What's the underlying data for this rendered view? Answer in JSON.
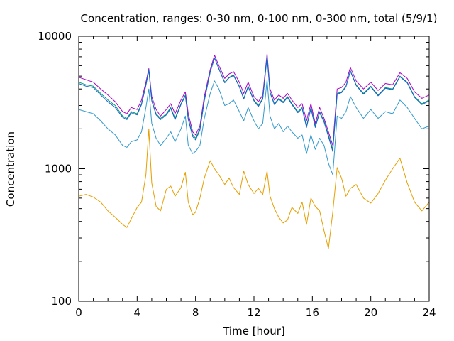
{
  "chart_data": {
    "type": "line",
    "title": "Concentration, ranges: 0-30 nm, 0-100 nm, 0-300 nm, total (5/9/1)",
    "xlabel": "Time [hour]",
    "ylabel": "Concentration",
    "xlim": [
      0,
      24
    ],
    "ylim": [
      100,
      10000
    ],
    "yscale": "log",
    "grid": false,
    "legend": "none",
    "x_ticks": [
      "0",
      "4",
      "8",
      "12",
      "16",
      "20",
      "24"
    ],
    "x_tick_values": [
      0,
      4,
      8,
      12,
      16,
      20,
      24
    ],
    "y_ticks": [
      "100",
      "1000",
      "10000"
    ],
    "y_tick_values": [
      100,
      1000,
      10000
    ],
    "x": [
      0.0,
      0.5,
      1.0,
      1.5,
      2.0,
      2.5,
      3.0,
      3.3,
      3.6,
      4.0,
      4.3,
      4.6,
      4.8,
      5.0,
      5.3,
      5.6,
      6.0,
      6.3,
      6.6,
      7.0,
      7.3,
      7.5,
      7.8,
      8.0,
      8.3,
      8.6,
      9.0,
      9.3,
      9.6,
      10.0,
      10.3,
      10.6,
      11.0,
      11.3,
      11.6,
      12.0,
      12.3,
      12.6,
      12.9,
      13.1,
      13.4,
      13.7,
      14.0,
      14.3,
      14.6,
      15.0,
      15.3,
      15.6,
      15.9,
      16.2,
      16.5,
      16.8,
      17.1,
      17.4,
      17.7,
      18.0,
      18.3,
      18.6,
      19.0,
      19.5,
      20.0,
      20.5,
      21.0,
      21.5,
      22.0,
      22.5,
      23.0,
      23.5,
      24.0
    ],
    "series": [
      {
        "color": "#aa00cc",
        "values": [
          4900,
          4700,
          4500,
          4000,
          3600,
          3200,
          2700,
          2600,
          2900,
          2800,
          3300,
          4500,
          5700,
          3500,
          2800,
          2500,
          2800,
          3100,
          2600,
          3300,
          3800,
          2600,
          1900,
          1800,
          2100,
          3500,
          5600,
          7200,
          6000,
          4800,
          5200,
          5400,
          4500,
          3700,
          4500,
          3500,
          3200,
          3600,
          7400,
          4000,
          3300,
          3600,
          3400,
          3700,
          3300,
          2900,
          3100,
          2300,
          3100,
          2200,
          2900,
          2400,
          1900,
          1500,
          4000,
          4100,
          4500,
          5800,
          4600,
          4000,
          4500,
          3900,
          4400,
          4300,
          5300,
          4800,
          3800,
          3400,
          3600
        ]
      },
      {
        "color": "#009e73",
        "values": [
          4500,
          4300,
          4200,
          3700,
          3300,
          3000,
          2500,
          2400,
          2700,
          2600,
          3100,
          4300,
          5600,
          3300,
          2600,
          2400,
          2600,
          2900,
          2400,
          3100,
          3600,
          2400,
          1800,
          1700,
          2000,
          3300,
          5400,
          6900,
          5700,
          4500,
          4900,
          5100,
          4200,
          3400,
          4200,
          3300,
          3000,
          3400,
          7100,
          3800,
          3100,
          3400,
          3200,
          3500,
          3100,
          2700,
          2900,
          2100,
          2900,
          2100,
          2700,
          2300,
          1800,
          1400,
          3700,
          3800,
          4200,
          5500,
          4300,
          3700,
          4200,
          3600,
          4100,
          4000,
          5000,
          4500,
          3500,
          3100,
          3300
        ]
      },
      {
        "color": "#1a5fd0",
        "values": [
          4400,
          4200,
          4100,
          3600,
          3200,
          2900,
          2450,
          2350,
          2650,
          2550,
          3050,
          4250,
          5550,
          3250,
          2550,
          2350,
          2550,
          2850,
          2350,
          3050,
          3550,
          2350,
          1750,
          1650,
          1950,
          3250,
          5350,
          6850,
          5650,
          4450,
          4850,
          5050,
          4150,
          3350,
          4150,
          3250,
          2950,
          3350,
          7050,
          3750,
          3050,
          3350,
          3150,
          3450,
          3050,
          2650,
          2850,
          2050,
          2850,
          2050,
          2650,
          2250,
          1750,
          1350,
          3650,
          3750,
          4150,
          5450,
          4250,
          3650,
          4150,
          3550,
          4050,
          3950,
          4950,
          4450,
          3450,
          3050,
          3250
        ]
      },
      {
        "color": "#3399cc",
        "values": [
          2800,
          2700,
          2600,
          2300,
          2000,
          1800,
          1500,
          1450,
          1600,
          1650,
          1900,
          2900,
          4000,
          2200,
          1700,
          1500,
          1700,
          1900,
          1600,
          2000,
          2500,
          1500,
          1300,
          1350,
          1500,
          2400,
          3700,
          4600,
          4000,
          3000,
          3100,
          3300,
          2700,
          2300,
          2900,
          2300,
          2000,
          2200,
          4700,
          2500,
          2000,
          2200,
          1900,
          2100,
          1900,
          1700,
          1800,
          1300,
          1800,
          1400,
          1700,
          1500,
          1100,
          900,
          2500,
          2400,
          2700,
          3500,
          2900,
          2400,
          2800,
          2400,
          2700,
          2600,
          3300,
          2900,
          2400,
          2000,
          2100
        ]
      },
      {
        "color": "#e69f00",
        "values": [
          620,
          640,
          610,
          560,
          480,
          430,
          380,
          360,
          420,
          510,
          560,
          900,
          2000,
          780,
          520,
          480,
          700,
          740,
          620,
          720,
          940,
          560,
          450,
          470,
          600,
          850,
          1150,
          1000,
          900,
          760,
          850,
          720,
          640,
          960,
          760,
          650,
          710,
          640,
          960,
          620,
          500,
          430,
          390,
          410,
          510,
          460,
          560,
          380,
          600,
          520,
          480,
          340,
          250,
          470,
          1020,
          850,
          620,
          710,
          760,
          600,
          550,
          650,
          820,
          1000,
          1200,
          780,
          560,
          480,
          560
        ]
      }
    ]
  }
}
